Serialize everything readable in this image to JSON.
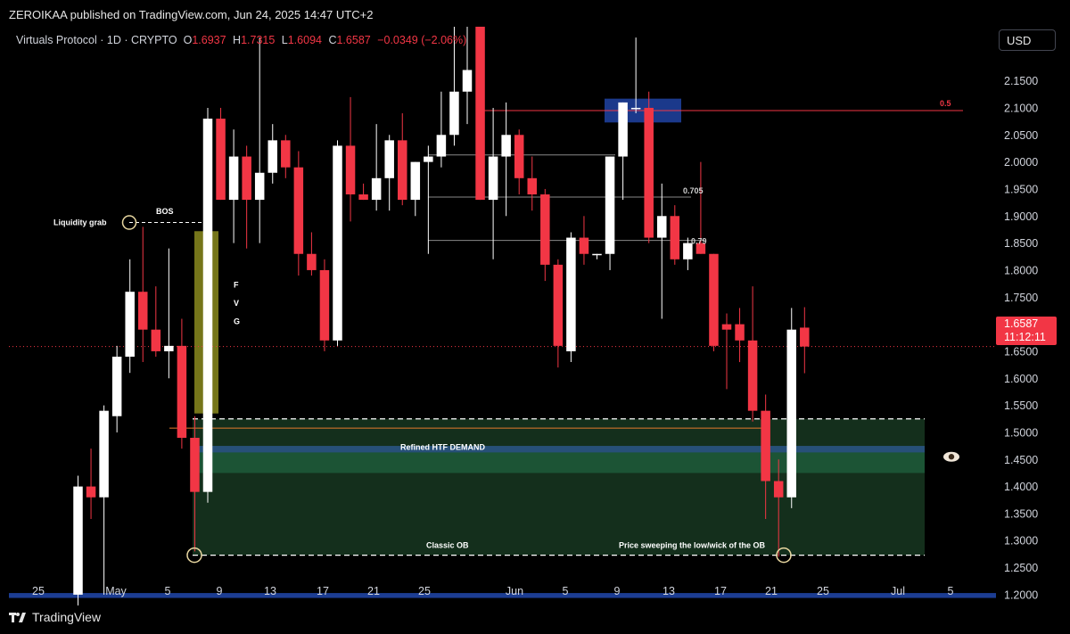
{
  "header": {
    "published": "ZEROIKAA published on TradingView.com, Jun 24, 2025 14:47 UTC+2"
  },
  "legend": {
    "symbol": "Virtuals Protocol · 1D · CRYPTO",
    "open_label": "O",
    "open": "1.6937",
    "high_label": "H",
    "high": "1.7315",
    "low_label": "L",
    "low": "1.6094",
    "close_label": "C",
    "close": "1.6587",
    "change": "−0.0349 (−2.06%)"
  },
  "currency_button": "USD",
  "price_tag": {
    "price": "1.6587",
    "countdown": "11:12:11"
  },
  "brand": {
    "name": "TradingView"
  },
  "colors": {
    "up": "#ffffff",
    "down": "#f23645",
    "demand_zone": "#1b3a25",
    "ob_zone": "#15321d",
    "fvg": "#8a8a1e",
    "htf_band": "#1f3a7a"
  },
  "chart_data": {
    "type": "candlestick",
    "y_ticks": [
      "2.1500",
      "2.1000",
      "2.0500",
      "2.0000",
      "1.9500",
      "1.9000",
      "1.8500",
      "1.8000",
      "1.7500",
      "1.7000",
      "1.6500",
      "1.6000",
      "1.5500",
      "1.5000",
      "1.4500",
      "1.4000",
      "1.3500",
      "1.3000",
      "1.2500",
      "1.2000"
    ],
    "x_ticks": [
      "25",
      "May",
      "5",
      "9",
      "13",
      "17",
      "21",
      "25",
      "Jun",
      "5",
      "9",
      "13",
      "17",
      "21",
      "25",
      "Jul",
      "5"
    ],
    "ylim": [
      1.185,
      2.245
    ],
    "annotations": {
      "liquidity_grab": "Liquidity grab",
      "bos": "BOS",
      "fvg": [
        "F",
        "V",
        "G"
      ],
      "refined_demand": "Refined HTF DEMAND",
      "classic_ob": "Classic OB",
      "sweep_note": "Price sweeping the low/wick of the OB",
      "fib_05": "0.5",
      "fib_0705": "0.705",
      "fib_079": "0.79"
    },
    "levels": {
      "liquidity_grab_price": 1.888,
      "ob_low": 1.273,
      "ob_top": 1.525,
      "demand_top": 1.475,
      "demand_bottom": 1.425,
      "fib_05_price": 2.095,
      "fib_0705_price": 1.948,
      "fib_079_price": 1.855,
      "current_price": 1.6587,
      "orange_line": 1.508
    },
    "candles": [
      {
        "date": "Apr 29",
        "o": 1.2,
        "h": 1.42,
        "l": 1.18,
        "c": 1.4
      },
      {
        "date": "Apr 30",
        "o": 1.4,
        "h": 1.47,
        "l": 1.34,
        "c": 1.38
      },
      {
        "date": "May 1",
        "o": 1.38,
        "h": 1.55,
        "l": 1.2,
        "c": 1.54
      },
      {
        "date": "May 2",
        "o": 1.53,
        "h": 1.66,
        "l": 1.5,
        "c": 1.64
      },
      {
        "date": "May 3",
        "o": 1.64,
        "h": 1.82,
        "l": 1.61,
        "c": 1.76
      },
      {
        "date": "May 4",
        "o": 1.76,
        "h": 1.88,
        "l": 1.63,
        "c": 1.69
      },
      {
        "date": "May 5",
        "o": 1.69,
        "h": 1.77,
        "l": 1.64,
        "c": 1.65
      },
      {
        "date": "May 6",
        "o": 1.65,
        "h": 1.84,
        "l": 1.6,
        "c": 1.66
      },
      {
        "date": "May 7",
        "o": 1.66,
        "h": 1.71,
        "l": 1.47,
        "c": 1.49
      },
      {
        "date": "May 8",
        "o": 1.49,
        "h": 1.53,
        "l": 1.28,
        "c": 1.39
      },
      {
        "date": "May 9",
        "o": 1.39,
        "h": 2.1,
        "l": 1.37,
        "c": 2.08
      },
      {
        "date": "May 10",
        "o": 2.08,
        "h": 2.1,
        "l": 1.93,
        "c": 1.93
      },
      {
        "date": "May 11",
        "o": 1.93,
        "h": 2.06,
        "l": 1.85,
        "c": 2.01
      },
      {
        "date": "May 12",
        "o": 2.01,
        "h": 2.03,
        "l": 1.84,
        "c": 1.93
      },
      {
        "date": "May 13",
        "o": 1.93,
        "h": 2.23,
        "l": 1.85,
        "c": 1.98
      },
      {
        "date": "May 14",
        "o": 1.98,
        "h": 2.07,
        "l": 1.96,
        "c": 2.04
      },
      {
        "date": "May 15",
        "o": 2.04,
        "h": 2.05,
        "l": 1.97,
        "c": 1.99
      },
      {
        "date": "May 16",
        "o": 1.99,
        "h": 2.02,
        "l": 1.79,
        "c": 1.83
      },
      {
        "date": "May 17",
        "o": 1.83,
        "h": 1.87,
        "l": 1.79,
        "c": 1.8
      },
      {
        "date": "May 18",
        "o": 1.8,
        "h": 1.82,
        "l": 1.65,
        "c": 1.67
      },
      {
        "date": "May 19",
        "o": 1.67,
        "h": 2.04,
        "l": 1.66,
        "c": 2.03
      },
      {
        "date": "May 20",
        "o": 2.03,
        "h": 2.12,
        "l": 1.89,
        "c": 1.94
      },
      {
        "date": "May 21",
        "o": 1.94,
        "h": 1.96,
        "l": 1.93,
        "c": 1.93
      },
      {
        "date": "May 22",
        "o": 1.93,
        "h": 2.07,
        "l": 1.91,
        "c": 1.97
      },
      {
        "date": "May 23",
        "o": 1.97,
        "h": 2.05,
        "l": 1.91,
        "c": 2.04
      },
      {
        "date": "May 24",
        "o": 2.04,
        "h": 2.09,
        "l": 1.92,
        "c": 1.93
      },
      {
        "date": "May 25",
        "o": 1.93,
        "h": 2.0,
        "l": 1.9,
        "c": 2.0
      },
      {
        "date": "May 26",
        "o": 2.0,
        "h": 2.03,
        "l": 1.83,
        "c": 2.01
      },
      {
        "date": "May 27",
        "o": 2.01,
        "h": 2.13,
        "l": 1.99,
        "c": 2.05
      },
      {
        "date": "May 28",
        "o": 2.05,
        "h": 2.25,
        "l": 2.03,
        "c": 2.13
      },
      {
        "date": "May 29",
        "o": 2.13,
        "h": 2.25,
        "l": 2.07,
        "c": 2.17
      },
      {
        "date": "May 30",
        "o": 2.25,
        "h": 2.25,
        "l": 1.93,
        "c": 1.93
      },
      {
        "date": "May 31",
        "o": 1.93,
        "h": 2.1,
        "l": 1.82,
        "c": 2.01
      },
      {
        "date": "Jun 1",
        "o": 2.01,
        "h": 2.11,
        "l": 1.9,
        "c": 2.05
      },
      {
        "date": "Jun 2",
        "o": 2.05,
        "h": 2.06,
        "l": 1.94,
        "c": 1.97
      },
      {
        "date": "Jun 3",
        "o": 1.97,
        "h": 2.01,
        "l": 1.91,
        "c": 1.94
      },
      {
        "date": "Jun 4",
        "o": 1.94,
        "h": 1.95,
        "l": 1.78,
        "c": 1.81
      },
      {
        "date": "Jun 5",
        "o": 1.81,
        "h": 1.82,
        "l": 1.62,
        "c": 1.66
      },
      {
        "date": "Jun 6",
        "o": 1.65,
        "h": 1.87,
        "l": 1.63,
        "c": 1.86
      },
      {
        "date": "Jun 7",
        "o": 1.86,
        "h": 1.9,
        "l": 1.81,
        "c": 1.83
      },
      {
        "date": "Jun 8",
        "o": 1.83,
        "h": 1.83,
        "l": 1.82,
        "c": 1.83
      },
      {
        "date": "Jun 9",
        "o": 1.83,
        "h": 2.01,
        "l": 1.8,
        "c": 2.01
      },
      {
        "date": "Jun 10",
        "o": 2.01,
        "h": 2.11,
        "l": 1.93,
        "c": 2.11
      },
      {
        "date": "Jun 11",
        "o": 2.1,
        "h": 2.23,
        "l": 2.09,
        "c": 2.1
      },
      {
        "date": "Jun 12",
        "o": 2.1,
        "h": 2.13,
        "l": 1.85,
        "c": 1.86
      },
      {
        "date": "Jun 13",
        "o": 1.86,
        "h": 1.96,
        "l": 1.71,
        "c": 1.9
      },
      {
        "date": "Jun 14",
        "o": 1.9,
        "h": 1.92,
        "l": 1.81,
        "c": 1.82
      },
      {
        "date": "Jun 15",
        "o": 1.82,
        "h": 1.86,
        "l": 1.8,
        "c": 1.85
      },
      {
        "date": "Jun 16",
        "o": 1.85,
        "h": 2.0,
        "l": 1.83,
        "c": 1.83
      },
      {
        "date": "Jun 17",
        "o": 1.83,
        "h": 1.83,
        "l": 1.65,
        "c": 1.66
      },
      {
        "date": "Jun 18",
        "o": 1.7,
        "h": 1.72,
        "l": 1.58,
        "c": 1.69
      },
      {
        "date": "Jun 19",
        "o": 1.7,
        "h": 1.73,
        "l": 1.63,
        "c": 1.67
      },
      {
        "date": "Jun 20",
        "o": 1.67,
        "h": 1.77,
        "l": 1.52,
        "c": 1.54
      },
      {
        "date": "Jun 21",
        "o": 1.54,
        "h": 1.57,
        "l": 1.34,
        "c": 1.41
      },
      {
        "date": "Jun 22",
        "o": 1.41,
        "h": 1.45,
        "l": 1.27,
        "c": 1.38
      },
      {
        "date": "Jun 23",
        "o": 1.38,
        "h": 1.73,
        "l": 1.36,
        "c": 1.69
      },
      {
        "date": "Jun 24",
        "o": 1.6937,
        "h": 1.7315,
        "l": 1.6094,
        "c": 1.6587
      }
    ]
  }
}
